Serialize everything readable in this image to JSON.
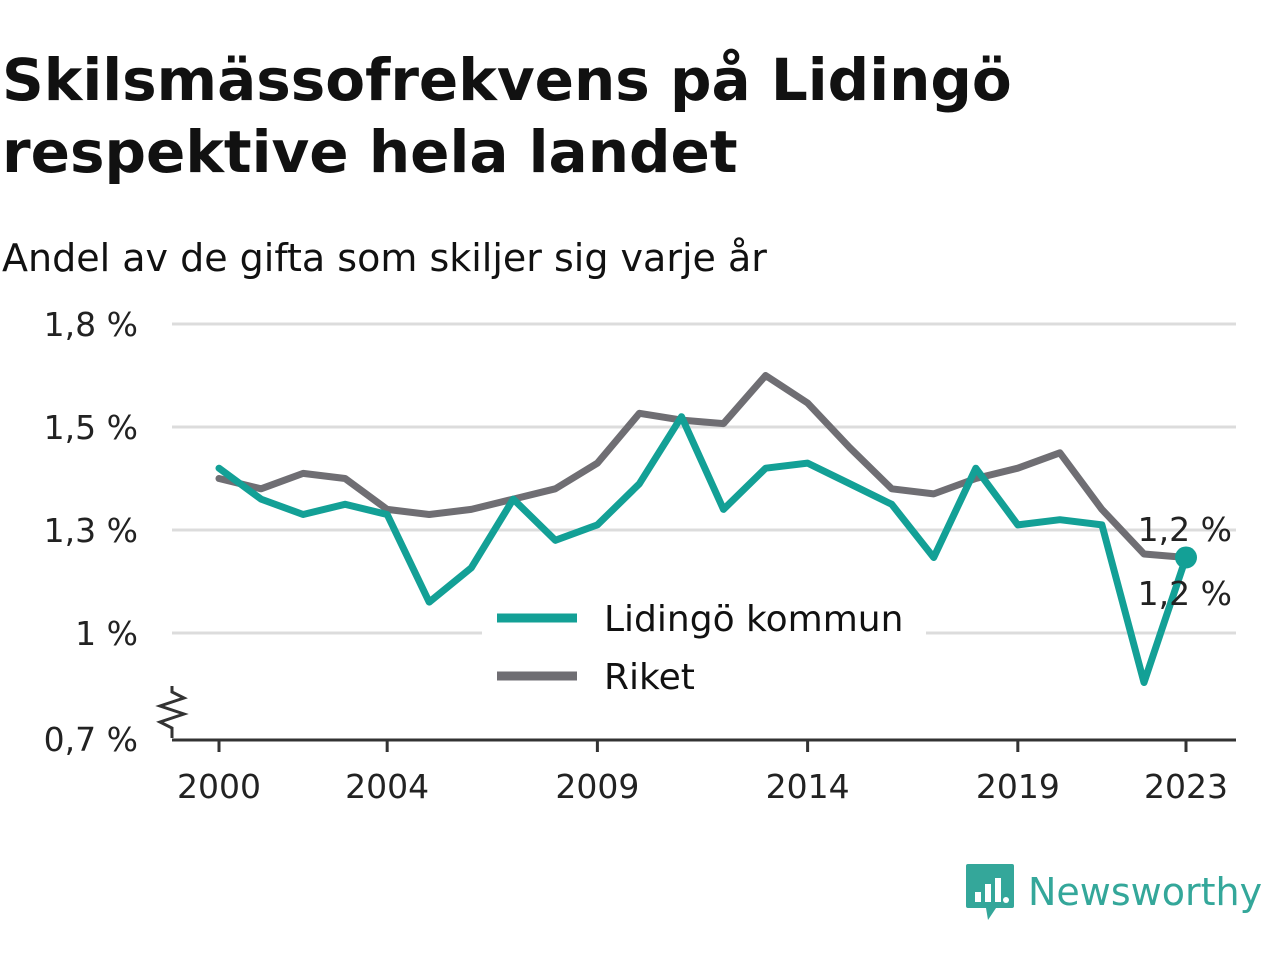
{
  "title": "Skilsmässofrekvens på Lidingö respektive hela landet",
  "subtitle": "Andel av de gifta som skiljer sig varje år",
  "brand": "Newsworthy",
  "colors": {
    "lidingo": "#13a096",
    "riket": "#6f6e73",
    "grid": "#dcdcdc",
    "axis": "#333333",
    "brand": "#34a79a"
  },
  "chart_data": {
    "type": "line",
    "x": [
      2000,
      2001,
      2002,
      2003,
      2004,
      2005,
      2006,
      2007,
      2008,
      2009,
      2010,
      2011,
      2012,
      2013,
      2014,
      2015,
      2016,
      2017,
      2018,
      2019,
      2020,
      2021,
      2022,
      2023
    ],
    "series": [
      {
        "name": "Lidingö kommun",
        "color": "#13a096",
        "values": [
          1.42,
          1.36,
          1.33,
          1.35,
          1.33,
          1.09,
          1.19,
          1.36,
          1.27,
          1.31,
          1.39,
          1.53,
          1.34,
          1.42,
          1.43,
          1.39,
          1.35,
          1.22,
          1.42,
          1.31,
          1.32,
          1.31,
          0.86,
          1.22
        ]
      },
      {
        "name": "Riket",
        "color": "#6f6e73",
        "values": [
          1.4,
          1.38,
          1.41,
          1.4,
          1.34,
          1.33,
          1.34,
          1.36,
          1.38,
          1.43,
          1.54,
          1.52,
          1.51,
          1.65,
          1.57,
          1.46,
          1.38,
          1.37,
          1.4,
          1.42,
          1.45,
          1.34,
          1.23,
          1.22
        ]
      }
    ],
    "y_ticks": [
      {
        "value": 0.7,
        "label": "0,7 %"
      },
      {
        "value": 1.0,
        "label": "1 %"
      },
      {
        "value": 1.3,
        "label": "1,3 %"
      },
      {
        "value": 1.5,
        "label": "1,5 %"
      },
      {
        "value": 1.8,
        "label": "1,8 %"
      }
    ],
    "x_ticks": [
      2000,
      2004,
      2009,
      2014,
      2019,
      2023
    ],
    "end_labels": {
      "riket": "1,2 %",
      "lidingo": "1,2 %"
    },
    "ylim": [
      0.7,
      1.8
    ],
    "xlim": [
      2000,
      2023
    ],
    "grid": true,
    "legend_position": "center-bottom",
    "axis_break": true
  }
}
